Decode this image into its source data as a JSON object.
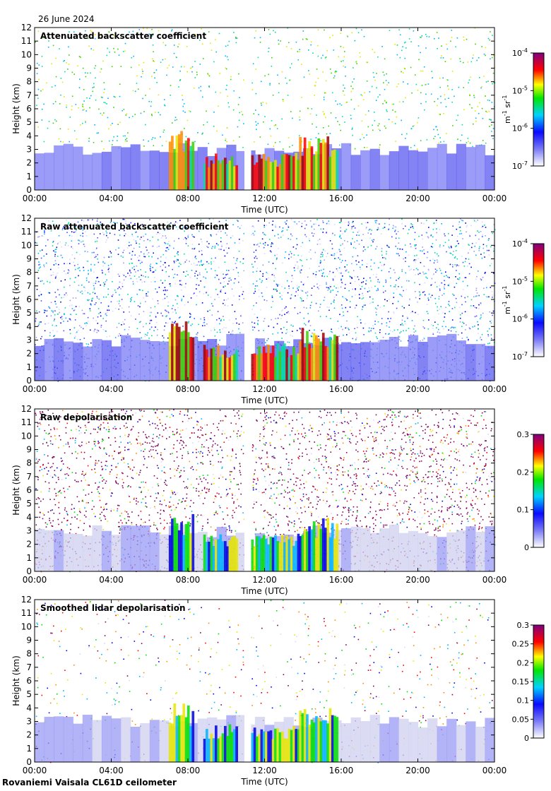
{
  "date_label": "26 June 2024",
  "footer_label": "Rovaniemi Vaisala CL61D ceilometer",
  "chart_data": [
    {
      "type": "heatmap",
      "title": "Attenuated backscatter coefficient",
      "xlabel": "Time (UTC)",
      "ylabel": "Height (km)",
      "x_ticks": [
        "00:00",
        "04:00",
        "08:00",
        "12:00",
        "16:00",
        "20:00",
        "00:00"
      ],
      "y_ticks": [
        0,
        1,
        2,
        3,
        4,
        5,
        6,
        7,
        8,
        9,
        10,
        11,
        12
      ],
      "ylim": [
        0,
        12
      ],
      "colorbar": {
        "scale": "log",
        "ticks": [
          {
            "base": "10",
            "exp": "-7"
          },
          {
            "base": "10",
            "exp": "-6"
          },
          {
            "base": "10",
            "exp": "-5"
          },
          {
            "base": "10",
            "exp": "-4"
          }
        ],
        "unit": {
          "m": "m",
          "m_exp": "-1",
          "sr": "sr",
          "sr_exp": "-1"
        }
      }
    },
    {
      "type": "heatmap",
      "title": "Raw attenuated backscatter coefficient",
      "xlabel": "Time (UTC)",
      "ylabel": "Height (km)",
      "x_ticks": [
        "00:00",
        "04:00",
        "08:00",
        "12:00",
        "16:00",
        "20:00",
        "00:00"
      ],
      "y_ticks": [
        0,
        1,
        2,
        3,
        4,
        5,
        6,
        7,
        8,
        9,
        10,
        11,
        12
      ],
      "ylim": [
        0,
        12
      ],
      "colorbar": {
        "scale": "log",
        "ticks": [
          {
            "base": "10",
            "exp": "-7"
          },
          {
            "base": "10",
            "exp": "-6"
          },
          {
            "base": "10",
            "exp": "-5"
          },
          {
            "base": "10",
            "exp": "-4"
          }
        ],
        "unit": {
          "m": "m",
          "m_exp": "-1",
          "sr": "sr",
          "sr_exp": "-1"
        }
      }
    },
    {
      "type": "heatmap",
      "title": "Raw depolarisation",
      "xlabel": "Time (UTC)",
      "ylabel": "Height (km)",
      "x_ticks": [
        "00:00",
        "04:00",
        "08:00",
        "12:00",
        "16:00",
        "20:00",
        "00:00"
      ],
      "y_ticks": [
        0,
        1,
        2,
        3,
        4,
        5,
        6,
        7,
        8,
        9,
        10,
        11,
        12
      ],
      "ylim": [
        0,
        12
      ],
      "colorbar": {
        "scale": "linear",
        "ticks": [
          "0",
          "0.1",
          "0.2",
          "0.3"
        ]
      }
    },
    {
      "type": "heatmap",
      "title": "Smoothed lidar depolarisation",
      "xlabel": "Time (UTC)",
      "ylabel": "Height (km)",
      "x_ticks": [
        "00:00",
        "04:00",
        "08:00",
        "12:00",
        "16:00",
        "20:00",
        "00:00"
      ],
      "y_ticks": [
        0,
        1,
        2,
        3,
        4,
        5,
        6,
        7,
        8,
        9,
        10,
        11,
        12
      ],
      "ylim": [
        0,
        12
      ],
      "colorbar": {
        "scale": "linear",
        "ticks": [
          "0",
          "0.05",
          "0.1",
          "0.15",
          "0.2",
          "0.25",
          "0.3"
        ]
      }
    }
  ]
}
